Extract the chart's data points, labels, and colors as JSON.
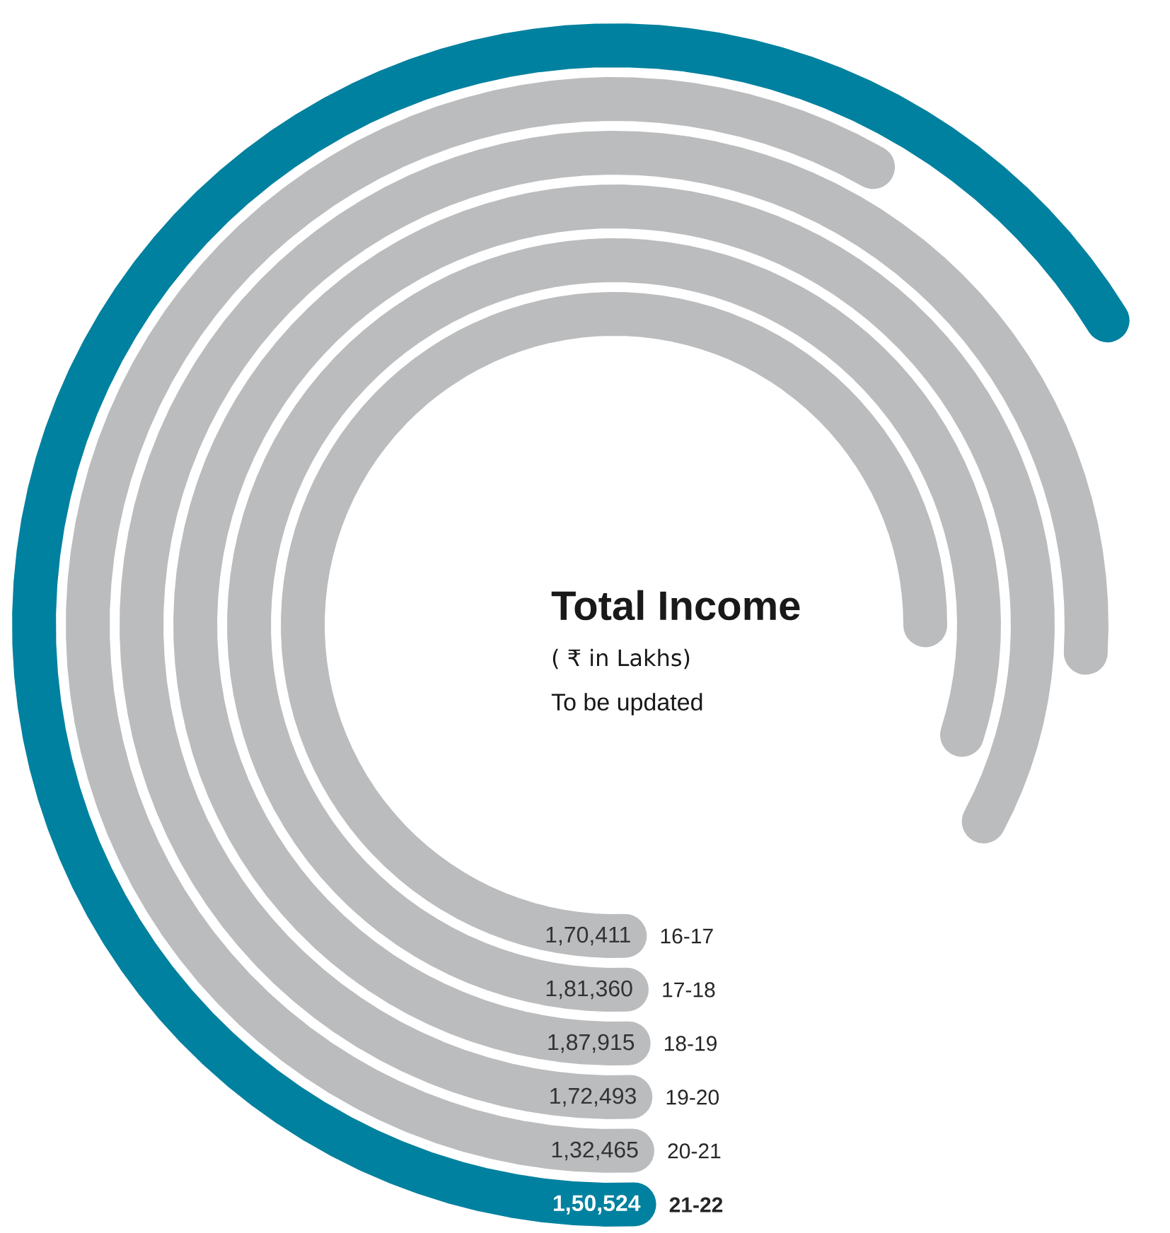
{
  "chart_data": {
    "type": "other",
    "title": "Total Income",
    "subtitle": "( ₹ in Lakhs)",
    "annotations": [
      "To be updated"
    ],
    "categories": [
      "16-17",
      "17-18",
      "18-19",
      "19-20",
      "20-21",
      "21-22"
    ],
    "values": [
      170411,
      181360,
      187915,
      172493,
      132465,
      150524
    ],
    "value_labels": [
      "1,70,411",
      "1,81,360",
      "1,87,915",
      "1,72,493",
      "1,32,465",
      "1,50,524"
    ],
    "colors": [
      "#bbbcbe",
      "#bbbcbe",
      "#bbbcbe",
      "#bbbcbe",
      "#bbbcbe",
      "#00819f"
    ]
  }
}
